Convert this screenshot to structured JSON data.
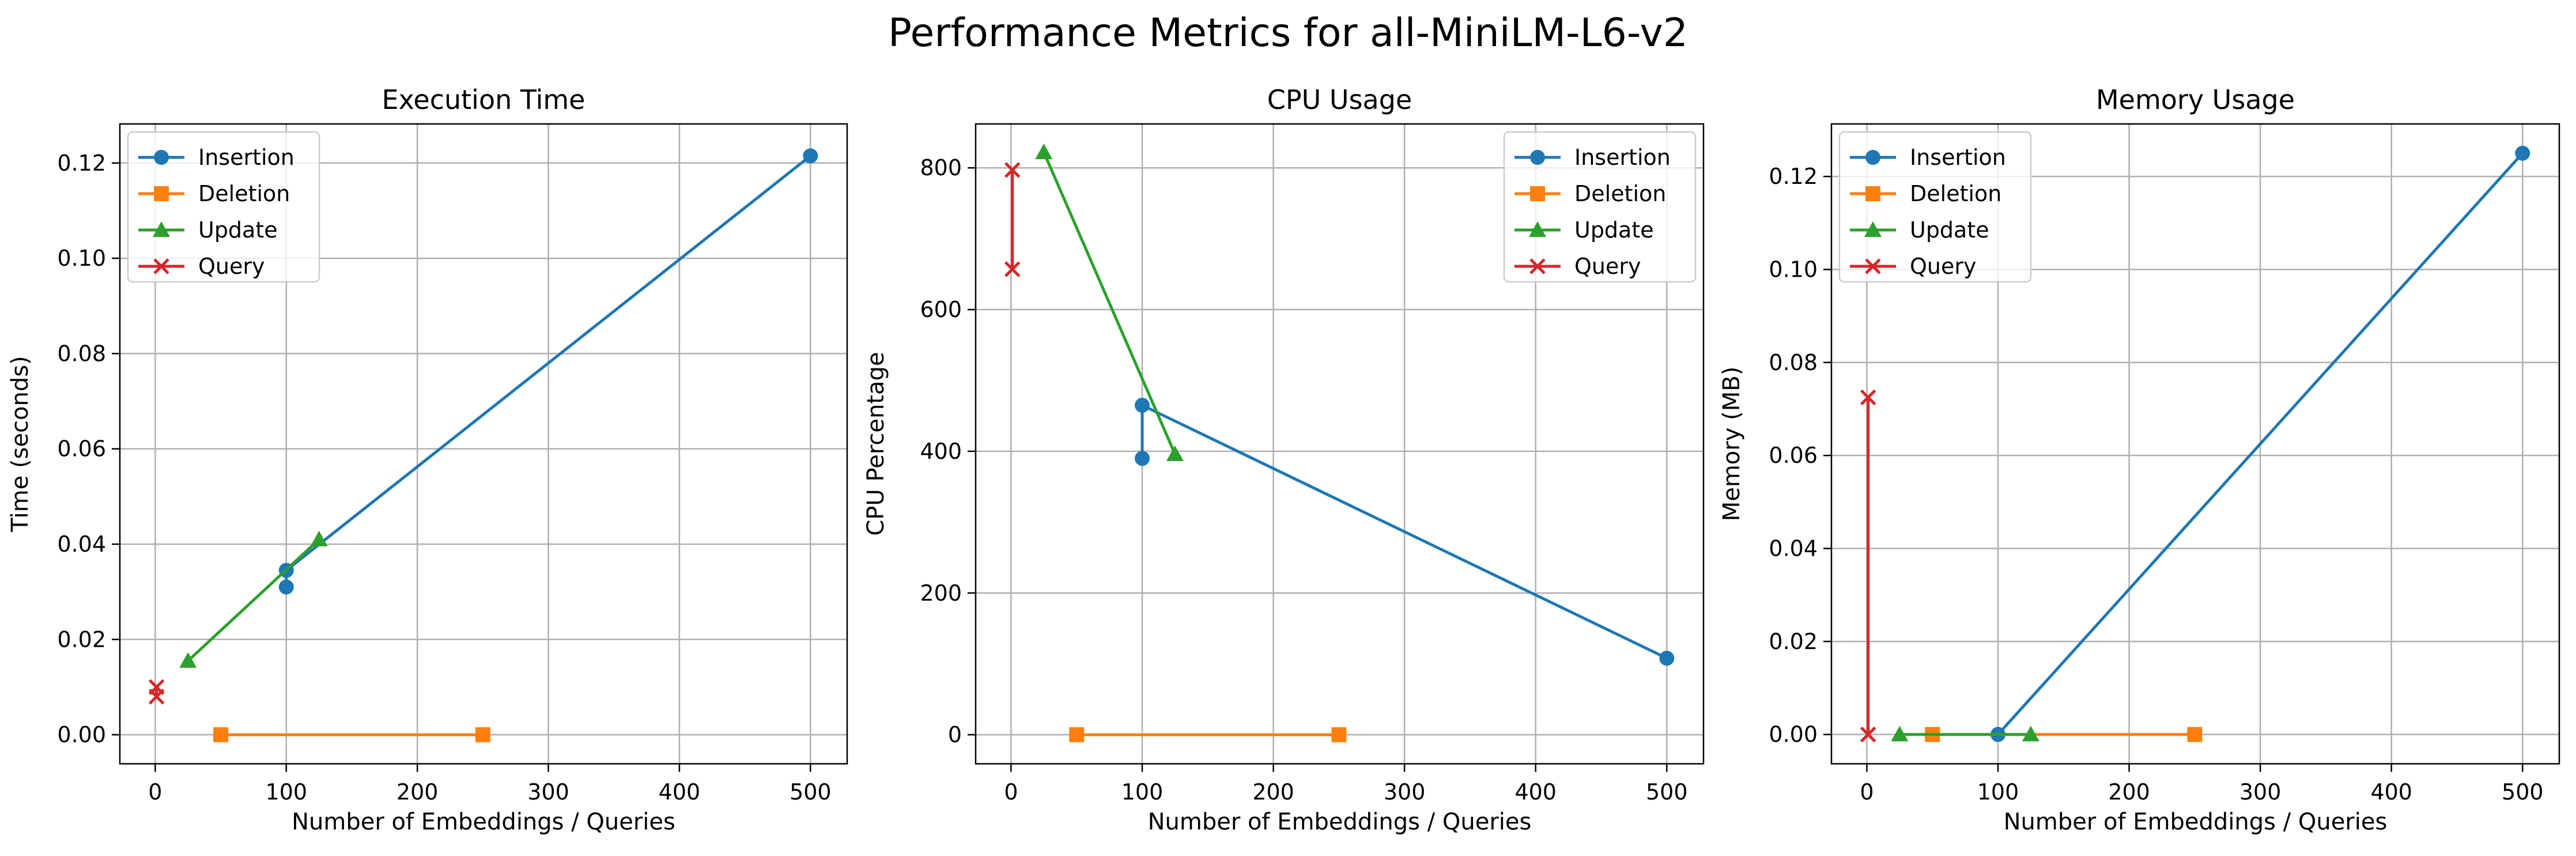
{
  "figure": {
    "suptitle": "Performance Metrics for all-MiniLM-L6-v2"
  },
  "series_colors": {
    "Insertion": "#1f77b4",
    "Deletion": "#ff7f0e",
    "Update": "#2ca02c",
    "Query": "#d62728"
  },
  "series_markers": {
    "Insertion": "circle",
    "Deletion": "square",
    "Update": "triangle",
    "Query": "x"
  },
  "chart_data": [
    {
      "type": "line",
      "title": "Execution Time",
      "xlabel": "Number of Embeddings / Queries",
      "ylabel": "Time (seconds)",
      "xlim": [
        -27,
        528
      ],
      "ylim": [
        -0.0061,
        0.1282
      ],
      "xticks": [
        0,
        100,
        200,
        300,
        400,
        500
      ],
      "yticks": [
        0.0,
        0.02,
        0.04,
        0.06,
        0.08,
        0.1,
        0.12
      ],
      "ytick_labels": [
        "0.00",
        "0.02",
        "0.04",
        "0.06",
        "0.08",
        "0.10",
        "0.12"
      ],
      "grid": true,
      "legend_position": "upper left",
      "series": [
        {
          "name": "Insertion",
          "points": [
            [
              100,
              0.031
            ],
            [
              100,
              0.0345
            ],
            [
              500,
              0.1215
            ]
          ]
        },
        {
          "name": "Deletion",
          "points": [
            [
              50,
              0.0
            ],
            [
              250,
              0.0
            ]
          ]
        },
        {
          "name": "Update",
          "points": [
            [
              25,
              0.0155
            ],
            [
              125,
              0.041
            ]
          ]
        },
        {
          "name": "Query",
          "points": [
            [
              1,
              0.008
            ],
            [
              1,
              0.01
            ]
          ]
        }
      ]
    },
    {
      "type": "line",
      "title": "CPU Usage",
      "xlabel": "Number of Embeddings / Queries",
      "ylabel": "CPU Percentage",
      "xlim": [
        -27,
        528
      ],
      "ylim": [
        -41,
        862
      ],
      "xticks": [
        0,
        100,
        200,
        300,
        400,
        500
      ],
      "yticks": [
        0,
        200,
        400,
        600,
        800
      ],
      "ytick_labels": [
        "0",
        "200",
        "400",
        "600",
        "800"
      ],
      "grid": true,
      "legend_position": "upper right",
      "series": [
        {
          "name": "Insertion",
          "points": [
            [
              100,
              390
            ],
            [
              100,
              465
            ],
            [
              500,
              108
            ]
          ]
        },
        {
          "name": "Deletion",
          "points": [
            [
              50,
              0
            ],
            [
              250,
              0
            ]
          ]
        },
        {
          "name": "Update",
          "points": [
            [
              25,
              822
            ],
            [
              125,
              396
            ]
          ]
        },
        {
          "name": "Query",
          "points": [
            [
              1,
              657
            ],
            [
              1,
              797
            ]
          ]
        }
      ]
    },
    {
      "type": "line",
      "title": "Memory Usage",
      "xlabel": "Number of Embeddings / Queries",
      "ylabel": "Memory (MB)",
      "xlim": [
        -27,
        528
      ],
      "ylim": [
        -0.0063,
        0.1313
      ],
      "xticks": [
        0,
        100,
        200,
        300,
        400,
        500
      ],
      "yticks": [
        0.0,
        0.02,
        0.04,
        0.06,
        0.08,
        0.1,
        0.12
      ],
      "ytick_labels": [
        "0.00",
        "0.02",
        "0.04",
        "0.06",
        "0.08",
        "0.10",
        "0.12"
      ],
      "grid": true,
      "legend_position": "upper left",
      "series": [
        {
          "name": "Insertion",
          "points": [
            [
              100,
              0.0
            ],
            [
              100,
              0.0
            ],
            [
              500,
              0.125
            ]
          ]
        },
        {
          "name": "Deletion",
          "points": [
            [
              50,
              0.0
            ],
            [
              250,
              0.0
            ]
          ]
        },
        {
          "name": "Update",
          "points": [
            [
              25,
              0.0
            ],
            [
              125,
              0.0
            ]
          ]
        },
        {
          "name": "Query",
          "points": [
            [
              1,
              0.0
            ],
            [
              1,
              0.0725
            ]
          ]
        }
      ]
    }
  ]
}
